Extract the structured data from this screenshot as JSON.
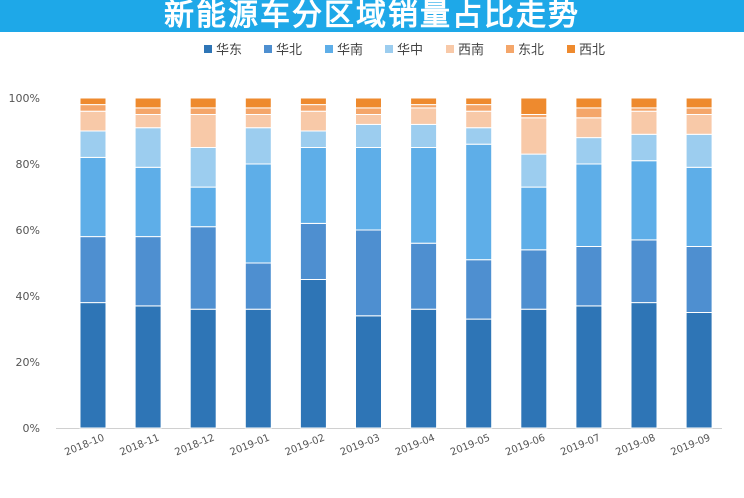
{
  "header": {
    "title": "新能源车分区域销量占比走势"
  },
  "colors": {
    "banner": "#1ea8e8",
    "series": [
      "#2e75b6",
      "#4e8fd0",
      "#5eaee8",
      "#9ccdef",
      "#f8c9a8",
      "#f4a66a",
      "#ee8a2e"
    ]
  },
  "chart_data": {
    "type": "bar",
    "stacked": true,
    "title": "新能源车分区域销量占比走势",
    "xlabel": "",
    "ylabel": "",
    "ylim": [
      0,
      100
    ],
    "yticks": [
      "0%",
      "20%",
      "40%",
      "60%",
      "80%",
      "100%"
    ],
    "legend_position": "top",
    "grid": false,
    "categories": [
      "2018-10",
      "2018-11",
      "2018-12",
      "2019-01",
      "2019-02",
      "2019-03",
      "2019-04",
      "2019-05",
      "2019-06",
      "2019-07",
      "2019-08",
      "2019-09"
    ],
    "series": [
      {
        "name": "华东",
        "values": [
          38,
          37,
          36,
          36,
          45,
          34,
          36,
          33,
          36,
          37,
          38,
          35
        ]
      },
      {
        "name": "华北",
        "values": [
          20,
          21,
          25,
          14,
          17,
          26,
          20,
          18,
          18,
          18,
          19,
          20
        ]
      },
      {
        "name": "华南",
        "values": [
          24,
          21,
          12,
          30,
          23,
          25,
          29,
          35,
          19,
          25,
          24,
          24
        ]
      },
      {
        "name": "华中",
        "values": [
          8,
          12,
          12,
          11,
          5,
          7,
          7,
          5,
          10,
          8,
          8,
          10
        ]
      },
      {
        "name": "西南",
        "values": [
          6,
          4,
          10,
          4,
          6,
          3,
          5,
          5,
          11,
          6,
          7,
          6
        ]
      },
      {
        "name": "东北",
        "values": [
          2,
          2,
          2,
          2,
          2,
          2,
          1,
          2,
          1,
          3,
          1,
          2
        ]
      },
      {
        "name": "西北",
        "values": [
          2,
          3,
          3,
          3,
          2,
          3,
          2,
          2,
          5,
          3,
          3,
          3
        ]
      }
    ]
  }
}
